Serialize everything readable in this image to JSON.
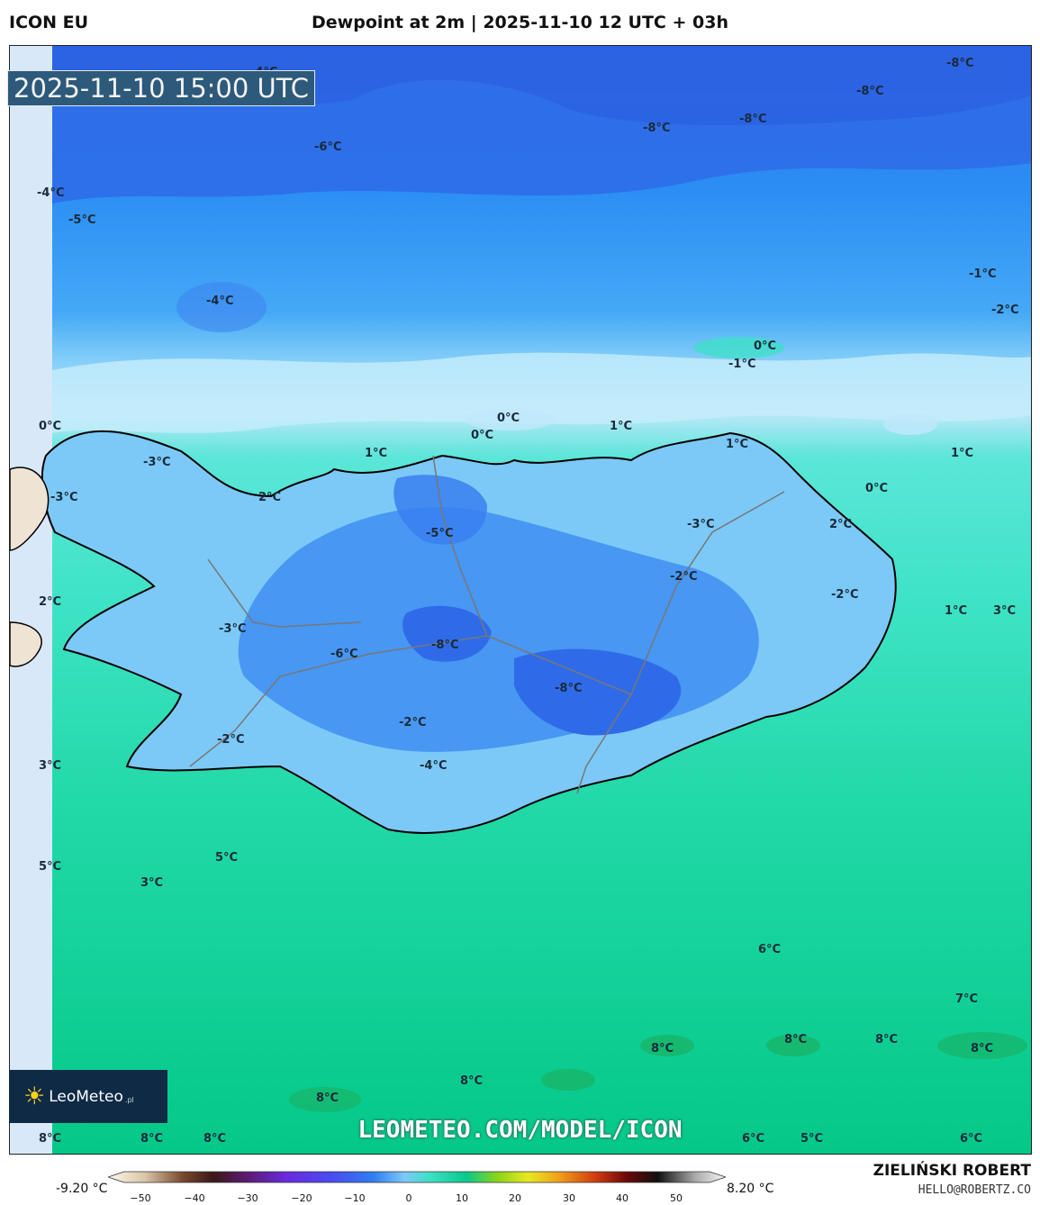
{
  "header": {
    "model": "ICON EU",
    "title": "Dewpoint at 2m | 2025-11-10 12 UTC + 03h"
  },
  "map": {
    "timestamp": "2025-11-10 15:00 UTC",
    "labels": [
      "-8°C",
      "-8°C",
      "-8°C",
      "-8°C",
      "-4°C",
      "-6°C",
      "-4°C",
      "-5°C",
      "-4°C",
      "-1°C",
      "-2°C",
      "0°C",
      "-1°C",
      "0°C",
      "0°C",
      "0°C",
      "1°C",
      "1°C",
      "1°C",
      "-3°C",
      "-3°C",
      "2°C",
      "0°C",
      "1°C",
      "-5°C",
      "-3°C",
      "-2°C",
      "2°C",
      "-2°C",
      "2°C",
      "1°C",
      "3°C",
      "-3°C",
      "-6°C",
      "-8°C",
      "-8°C",
      "-2°C",
      "-2°C",
      "-4°C",
      "3°C",
      "5°C",
      "5°C",
      "3°C",
      "6°C",
      "7°C",
      "8°C",
      "8°C",
      "8°C",
      "8°C",
      "8°C",
      "8°C",
      "8°C",
      "8°C",
      "8°C",
      "6°C",
      "5°C",
      "6°C"
    ],
    "colors": {
      "deep_blue": "#2f6ef0",
      "blue": "#2a8ff5",
      "light_blue": "#7cc9f7",
      "pale_blue": "#b8e4fb",
      "aqua": "#3fe0c8",
      "teal": "#1fd7a6",
      "green": "#07c98c",
      "land_low": "#1e8ff2"
    }
  },
  "logo": {
    "name": "LeoMeteo",
    "suffix": ".pl"
  },
  "watermark": "LEOMETEO.COM/MODEL/ICON",
  "colorbar": {
    "min": "-9.20 °C",
    "max": "8.20 °C",
    "ticks": [
      "−50",
      "−40",
      "−30",
      "−20",
      "−10",
      "0",
      "10",
      "20",
      "30",
      "40",
      "50"
    ]
  },
  "author": {
    "name": "ZIELIŃSKI ROBERT",
    "email": "HELLO@ROBERTZ.CO"
  }
}
